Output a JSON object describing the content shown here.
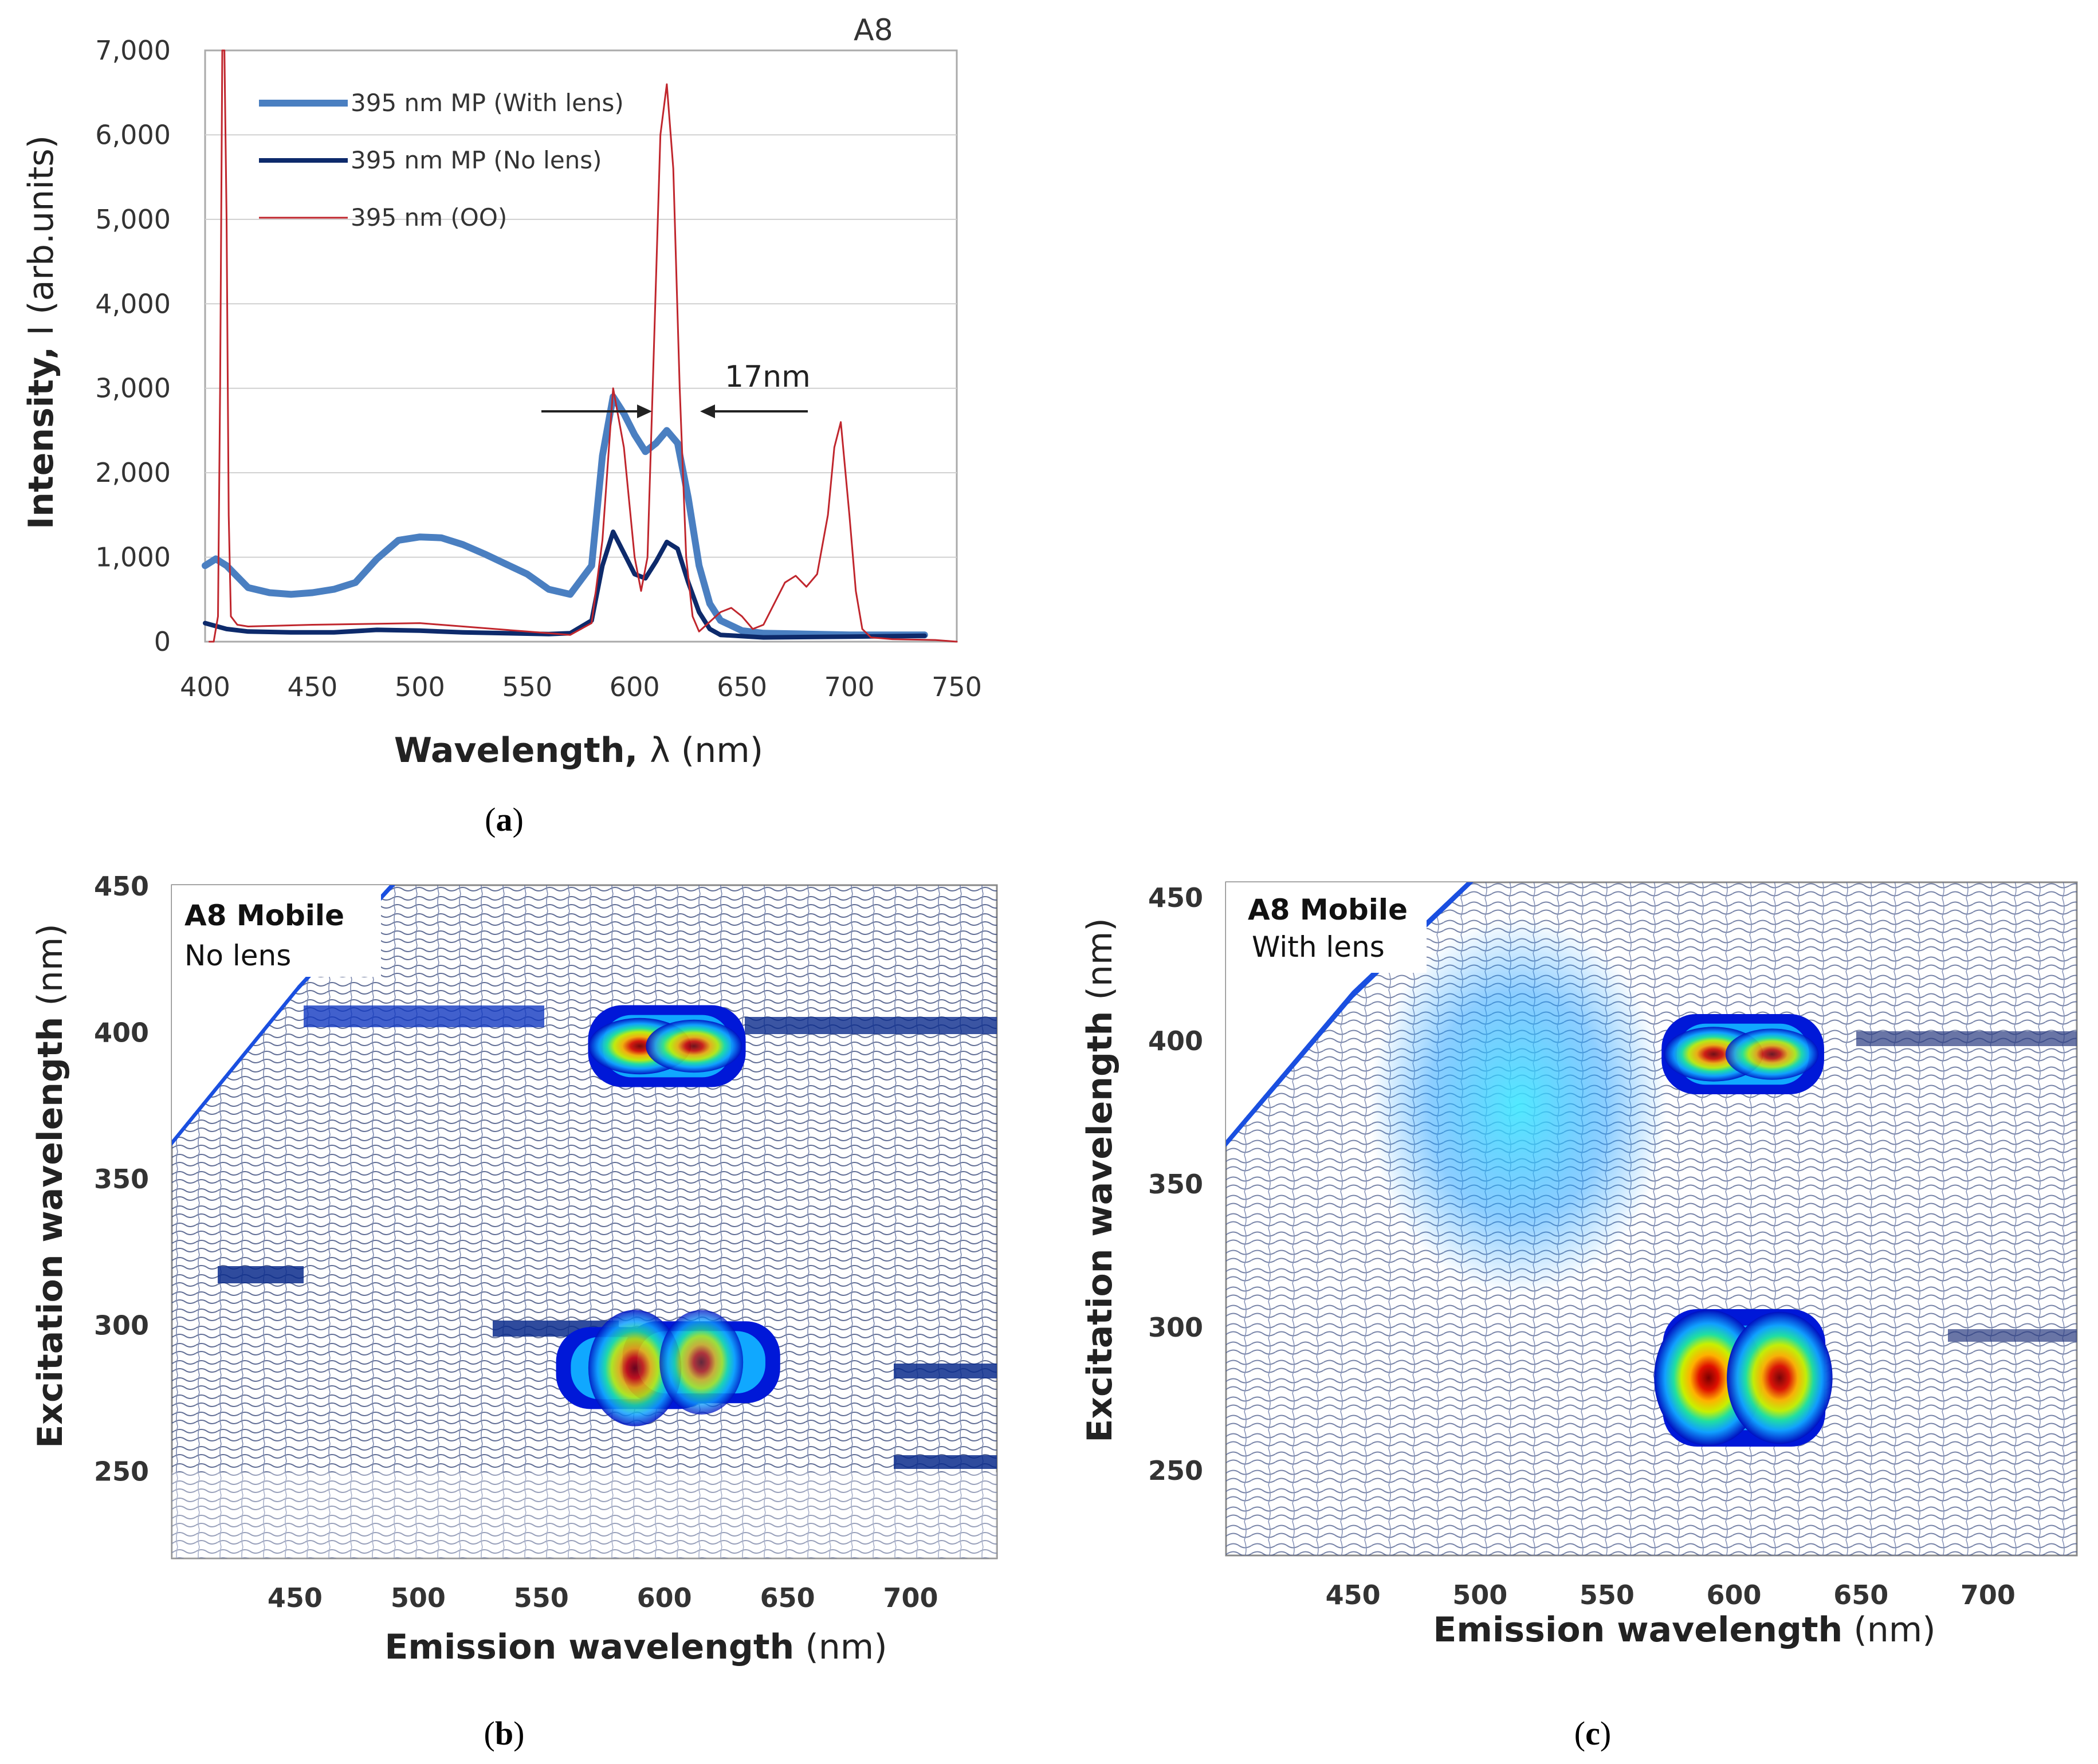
{
  "chart_data": [
    {
      "type": "line",
      "panel_label": "a",
      "tag": "A8",
      "xlabel": {
        "bold": "Wavelength, ",
        "symbol": "λ",
        "unit": " (nm)"
      },
      "ylabel": {
        "bold": "Intensity,",
        "rest": " I (arb.units)"
      },
      "xlim": [
        400,
        750
      ],
      "ylim": [
        0,
        7000
      ],
      "xticks": [
        "400",
        "450",
        "500",
        "550",
        "600",
        "650",
        "700",
        "750"
      ],
      "yticks": [
        "0",
        "1,000",
        "2,000",
        "3,000",
        "4,000",
        "5,000",
        "6,000",
        "7,000"
      ],
      "annotation": "17nm",
      "series": [
        {
          "name": "395 nm MP (With lens)",
          "color": "#4a7fc1",
          "width": 12,
          "x": [
            400,
            405,
            410,
            420,
            430,
            440,
            450,
            460,
            470,
            480,
            490,
            500,
            510,
            520,
            530,
            540,
            550,
            560,
            570,
            580,
            585,
            590,
            595,
            600,
            605,
            610,
            615,
            620,
            625,
            630,
            635,
            640,
            650,
            660,
            680,
            700,
            720,
            735
          ],
          "y": [
            900,
            980,
            900,
            640,
            580,
            560,
            580,
            620,
            700,
            980,
            1200,
            1240,
            1230,
            1150,
            1040,
            920,
            800,
            620,
            560,
            900,
            2200,
            2900,
            2700,
            2450,
            2250,
            2350,
            2500,
            2350,
            1700,
            900,
            450,
            250,
            130,
            100,
            90,
            80,
            80,
            80
          ]
        },
        {
          "name": "395 nm MP (No lens)",
          "color": "#0d2a6b",
          "width": 8,
          "x": [
            400,
            410,
            420,
            440,
            460,
            480,
            500,
            520,
            540,
            560,
            570,
            580,
            585,
            590,
            595,
            600,
            605,
            610,
            615,
            620,
            625,
            630,
            635,
            640,
            660,
            700,
            735
          ],
          "y": [
            220,
            150,
            120,
            110,
            110,
            140,
            130,
            110,
            100,
            90,
            100,
            250,
            900,
            1300,
            1050,
            800,
            750,
            950,
            1180,
            1100,
            700,
            350,
            150,
            80,
            50,
            60,
            70
          ]
        },
        {
          "name": "395 nm (OO)",
          "color": "#c0262d",
          "width": 3,
          "x": [
            402,
            404,
            406,
            407,
            408,
            409,
            410,
            411,
            412,
            415,
            420,
            450,
            500,
            550,
            570,
            580,
            585,
            590,
            595,
            600,
            603,
            606,
            609,
            612,
            615,
            618,
            621,
            624,
            627,
            630,
            640,
            645,
            650,
            655,
            660,
            670,
            675,
            680,
            685,
            690,
            693,
            696,
            700,
            703,
            706,
            710,
            720,
            740,
            750
          ],
          "y": [
            0,
            0,
            300,
            3000,
            7000,
            7000,
            5000,
            1500,
            300,
            200,
            180,
            200,
            220,
            120,
            80,
            220,
            1200,
            3000,
            2300,
            1000,
            600,
            1000,
            3500,
            6000,
            6600,
            5600,
            3000,
            1000,
            300,
            120,
            350,
            400,
            300,
            150,
            200,
            700,
            780,
            650,
            800,
            1500,
            2300,
            2600,
            1500,
            600,
            150,
            50,
            30,
            20,
            0
          ]
        }
      ]
    },
    {
      "type": "heatmap",
      "panel_label": "b",
      "box_title": "A8  Mobile",
      "box_subtitle": "No lens",
      "xlabel": {
        "bold": "Emission wavelength",
        "unit": " (nm)"
      },
      "ylabel": {
        "bold": "Excitation wavelength",
        "unit": " (nm)"
      },
      "xlim": [
        400,
        735
      ],
      "ylim": [
        220,
        450
      ],
      "xticks": [
        450,
        500,
        550,
        600,
        650,
        700
      ],
      "yticks": [
        250,
        300,
        350,
        400,
        450
      ],
      "peaks": [
        {
          "em": 590,
          "ex": 395,
          "level": 0.9
        },
        {
          "em": 612,
          "ex": 395,
          "level": 0.8
        },
        {
          "em": 588,
          "ex": 285,
          "level": 0.75
        },
        {
          "em": 615,
          "ex": 287,
          "level": 0.6
        }
      ]
    },
    {
      "type": "heatmap",
      "panel_label": "c",
      "box_title": "A8 Mobile",
      "box_subtitle": "With lens",
      "xlabel": {
        "bold": "Emission wavelength",
        "unit": " (nm)"
      },
      "ylabel": {
        "bold": "Excitation wavelength",
        "unit": " (nm)"
      },
      "xlim": [
        400,
        735
      ],
      "ylim": [
        220,
        455
      ],
      "xticks": [
        450,
        500,
        550,
        600,
        650,
        700
      ],
      "yticks": [
        250,
        300,
        350,
        400,
        450
      ],
      "peaks": [
        {
          "em": 592,
          "ex": 395,
          "level": 0.85
        },
        {
          "em": 615,
          "ex": 395,
          "level": 0.75
        },
        {
          "em": 590,
          "ex": 282,
          "level": 1.0
        },
        {
          "em": 618,
          "ex": 282,
          "level": 0.95
        }
      ]
    }
  ]
}
